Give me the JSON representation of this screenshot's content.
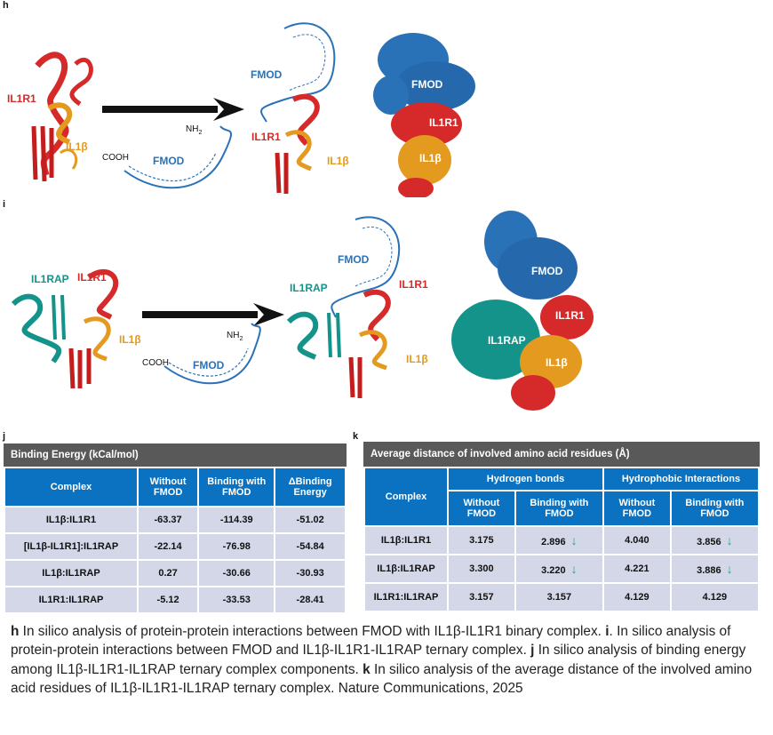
{
  "panels": {
    "h": "h",
    "i": "i",
    "j": "j",
    "k": "k"
  },
  "panel_h": {
    "left_il1r1": "IL1R1",
    "left_il1b": "IL1β",
    "fmod": "FMOD",
    "cooh": "COOH",
    "nh2": "NH",
    "nh2_sub": "2",
    "mid_fmod": "FMOD",
    "mid_il1r1": "IL1R1",
    "mid_il1b": "IL1β",
    "surf_fmod": "FMOD",
    "surf_il1r1": "IL1R1",
    "surf_il1b": "IL1β"
  },
  "panel_i": {
    "left_il1rap": "IL1RAP",
    "left_il1r1": "IL1R1",
    "left_il1b": "IL1β",
    "fmod": "FMOD",
    "cooh": "COOH",
    "nh2": "NH",
    "nh2_sub": "2",
    "mid_fmod": "FMOD",
    "mid_il1rap": "IL1RAP",
    "mid_il1r1": "IL1R1",
    "mid_il1b": "IL1β",
    "surf_fmod": "FMOD",
    "surf_il1rap": "IL1RAP",
    "surf_il1r1": "IL1R1",
    "surf_il1b": "IL1β"
  },
  "colors": {
    "fmod_blue": "#2a72b8",
    "il1r1_red": "#d62a2a",
    "il1b_orange": "#e39a1f",
    "il1rap_teal": "#13938a",
    "table_header": "#0a72c0",
    "table_cell": "#d3d7e8",
    "down_arrow": "#11a89a"
  },
  "table_j": {
    "title": "Binding Energy (kCal/mol)",
    "headers": [
      "Complex",
      "Without FMOD",
      "Binding with FMOD",
      "ΔBinding Energy"
    ],
    "rows": [
      [
        "IL1β:IL1R1",
        "-63.37",
        "-114.39",
        "-51.02"
      ],
      [
        "[IL1β-IL1R1]:IL1RAP",
        "-22.14",
        "-76.98",
        "-54.84"
      ],
      [
        "IL1β:IL1RAP",
        "0.27",
        "-30.66",
        "-30.93"
      ],
      [
        "IL1R1:IL1RAP",
        "-5.12",
        "-33.53",
        "-28.41"
      ]
    ]
  },
  "table_k": {
    "title": "Average distance of involved amino acid residues (Å)",
    "complex_header": "Complex",
    "group_headers": [
      "Hydrogen bonds",
      "Hydrophobic Interactions"
    ],
    "sub_headers": [
      "Without FMOD",
      "Binding with FMOD",
      "Without FMOD",
      "Binding with FMOD"
    ],
    "rows": [
      {
        "complex": "IL1β:IL1R1",
        "values": [
          "3.175",
          "2.896",
          "4.040",
          "3.856"
        ],
        "down": [
          false,
          true,
          false,
          true
        ]
      },
      {
        "complex": "IL1β:IL1RAP",
        "values": [
          "3.300",
          "3.220",
          "4.221",
          "3.886"
        ],
        "down": [
          false,
          true,
          false,
          true
        ]
      },
      {
        "complex": "IL1R1:IL1RAP",
        "values": [
          "3.157",
          "3.157",
          "4.129",
          "4.129"
        ],
        "down": [
          false,
          false,
          false,
          false
        ]
      }
    ]
  },
  "caption": {
    "h_letter": "h",
    "h_text": " In silico analysis of protein-protein interactions between FMOD with IL1β-IL1R1 binary complex. ",
    "i_letter": "i",
    "i_text": ". In silico analysis of protein-protein interactions between FMOD and IL1β-IL1R1-IL1RAP ternary complex. ",
    "j_letter": "j",
    "j_text": " In silico analysis of binding energy among IL1β-IL1R1-IL1RAP ternary complex components. ",
    "k_letter": "k",
    "k_text": " In silico analysis of the average distance of the involved amino acid residues of IL1β-IL1R1-IL1RAP ternary complex. Nature Communications, 2025"
  }
}
